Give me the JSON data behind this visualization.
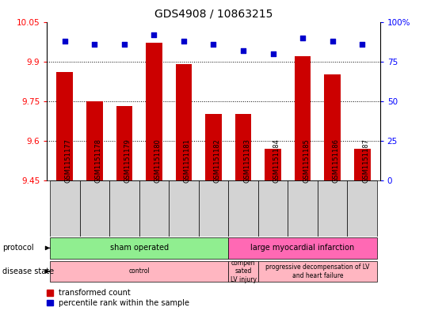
{
  "title": "GDS4908 / 10863215",
  "samples": [
    "GSM1151177",
    "GSM1151178",
    "GSM1151179",
    "GSM1151180",
    "GSM1151181",
    "GSM1151182",
    "GSM1151183",
    "GSM1151184",
    "GSM1151185",
    "GSM1151186",
    "GSM1151187"
  ],
  "bar_values": [
    9.86,
    9.75,
    9.73,
    9.97,
    9.89,
    9.7,
    9.7,
    9.57,
    9.92,
    9.85,
    9.57
  ],
  "percentile_values": [
    88,
    86,
    86,
    92,
    88,
    86,
    82,
    80,
    90,
    88,
    86
  ],
  "bar_color": "#cc0000",
  "percentile_color": "#0000cc",
  "ylim_left": [
    9.45,
    10.05
  ],
  "ylim_right": [
    0,
    100
  ],
  "yticks_left": [
    9.45,
    9.6,
    9.75,
    9.9,
    10.05
  ],
  "yticks_right": [
    0,
    25,
    50,
    75,
    100
  ],
  "ytick_labels_left": [
    "9.45",
    "9.6",
    "9.75",
    "9.9",
    "10.05"
  ],
  "ytick_labels_right": [
    "0",
    "25",
    "50",
    "75",
    "100%"
  ],
  "grid_lines": [
    9.9,
    9.75,
    9.6
  ],
  "protocol_configs": [
    {
      "start": 0,
      "end": 5,
      "label": "sham operated",
      "color": "#90ee90"
    },
    {
      "start": 6,
      "end": 10,
      "label": "large myocardial infarction",
      "color": "#ff69b4"
    }
  ],
  "disease_configs": [
    {
      "start": 0,
      "end": 5,
      "label": "control",
      "color": "#ffb6c1"
    },
    {
      "start": 6,
      "end": 6,
      "label": "compen\nsated\nLV injury",
      "color": "#ffb6c1"
    },
    {
      "start": 7,
      "end": 10,
      "label": "progressive decompensation of LV\nand heart failure",
      "color": "#ffb6c1"
    }
  ],
  "legend_labels": [
    "transformed count",
    "percentile rank within the sample"
  ],
  "legend_colors": [
    "#cc0000",
    "#0000cc"
  ],
  "xlabel_box_color": "#d3d3d3",
  "plot_bg_color": "#ffffff",
  "title_fontsize": 10,
  "axis_label_fontsize": 7,
  "tick_fontsize": 7.5,
  "sample_fontsize": 6,
  "bar_width": 0.55
}
